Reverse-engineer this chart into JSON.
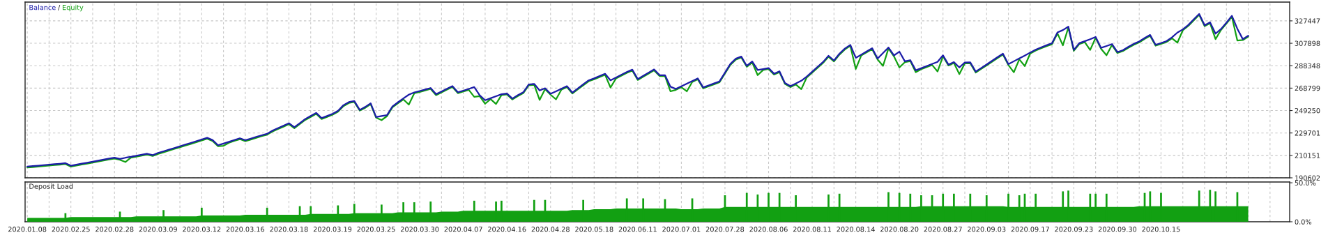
{
  "chart_data": [
    {
      "type": "line",
      "legend": "top left",
      "annotations": [
        "/"
      ],
      "grid": true,
      "tick_labels": "y",
      "categories": [
        "2020.01.08",
        null,
        null,
        null,
        null,
        null,
        null,
        null,
        "2020.02.25",
        null,
        null,
        null,
        null,
        null,
        null,
        null,
        "2020.02.28",
        null,
        null,
        null,
        null,
        null,
        null,
        null,
        "2020.03.09",
        null,
        null,
        null,
        null,
        null,
        null,
        null,
        "2020.03.12",
        null,
        null,
        null,
        null,
        null,
        null,
        null,
        "2020.03.16",
        null,
        null,
        null,
        null,
        null,
        null,
        null,
        "2020.03.18",
        null,
        null,
        null,
        null,
        null,
        null,
        null,
        "2020.03.19",
        null,
        null,
        null,
        null,
        null,
        null,
        null,
        "2020.03.25",
        null,
        null,
        null,
        null,
        null,
        null,
        null,
        "2020.03.30",
        null,
        null,
        null,
        null,
        null,
        null,
        null,
        "2020.04.07",
        null,
        null,
        null,
        null,
        null,
        null,
        null,
        "2020.04.16",
        null,
        null,
        null,
        null,
        null,
        null,
        null,
        "2020.04.28",
        null,
        null,
        null,
        null,
        null,
        null,
        null,
        "2020.05.18",
        null,
        null,
        null,
        null,
        null,
        null,
        null,
        "2020.06.11",
        null,
        null,
        null,
        null,
        null,
        null,
        null,
        "2020.07.01",
        null,
        null,
        null,
        null,
        null,
        null,
        null,
        "2020.07.28",
        null,
        null,
        null,
        null,
        null,
        null,
        null,
        "2020.08.06",
        null,
        null,
        null,
        null,
        null,
        null,
        null,
        "2020.08.11",
        null,
        null,
        null,
        null,
        null,
        null,
        null,
        "2020.08.14",
        null,
        null,
        null,
        null,
        null,
        null,
        null,
        "2020.08.20",
        null,
        null,
        null,
        null,
        null,
        null,
        null,
        "2020.08.27",
        null,
        null,
        null,
        null,
        null,
        null,
        null,
        "2020.09.03",
        null,
        null,
        null,
        null,
        null,
        null,
        null,
        "2020.09.17",
        null,
        null,
        null,
        null,
        null,
        null,
        null,
        "2020.09.23",
        null,
        null,
        null,
        null,
        null,
        null,
        null,
        "2020.09.30",
        null,
        null,
        null,
        null,
        null,
        null,
        null,
        "2020.10.15",
        null,
        null,
        null,
        null,
        null,
        null,
        null,
        null,
        null,
        null,
        null,
        null,
        null,
        null,
        null,
        null,
        null,
        null,
        null,
        null,
        null,
        null,
        null
      ],
      "series": [
        {
          "name": "Balance",
          "color": "#1c1ca8",
          "values": [
            200400,
            200800,
            201200,
            201700,
            202100,
            202500,
            202900,
            203400,
            201200,
            202100,
            203000,
            203800,
            204700,
            205600,
            206500,
            207400,
            208200,
            207100,
            208100,
            208900,
            209800,
            210700,
            211600,
            210400,
            212300,
            213700,
            215200,
            216600,
            218100,
            219600,
            221000,
            222500,
            224000,
            225500,
            223500,
            219000,
            220500,
            222000,
            223600,
            225100,
            223400,
            224800,
            226300,
            227700,
            229000,
            231800,
            233900,
            236000,
            238200,
            234700,
            238300,
            241900,
            244500,
            247200,
            242700,
            244500,
            246400,
            249000,
            253900,
            256600,
            257500,
            249800,
            252400,
            255600,
            243600,
            244500,
            245200,
            252900,
            256400,
            259800,
            263100,
            265100,
            266300,
            267600,
            268900,
            263500,
            265900,
            268300,
            270600,
            265200,
            266600,
            268100,
            269700,
            262600,
            258200,
            260000,
            261700,
            263500,
            264100,
            259700,
            262700,
            265200,
            272000,
            272500,
            266700,
            268700,
            263900,
            266000,
            268300,
            270500,
            264900,
            268500,
            272100,
            275600,
            277300,
            279300,
            281300,
            275600,
            278000,
            280500,
            282900,
            284900,
            276700,
            279500,
            282300,
            285100,
            280100,
            280100,
            270000,
            268100,
            270400,
            272700,
            275000,
            277300,
            269400,
            271200,
            272900,
            274700,
            282300,
            289900,
            294500,
            296300,
            288200,
            292000,
            284600,
            285400,
            286300,
            281400,
            283500,
            273300,
            270500,
            272800,
            275200,
            278900,
            283100,
            287400,
            291600,
            297000,
            292900,
            298800,
            303300,
            306500,
            295200,
            298000,
            300800,
            303600,
            294600,
            299400,
            304200,
            297300,
            300600,
            292200,
            293200,
            284300,
            286100,
            288000,
            289800,
            291700,
            297400,
            289300,
            291500,
            286800,
            291100,
            291300,
            283200,
            286300,
            289400,
            292600,
            295800,
            298800,
            289700,
            292200,
            294700,
            297200,
            299800,
            302300,
            304300,
            306200,
            307900,
            317300,
            319400,
            322400,
            302100,
            308000,
            309700,
            311400,
            313400,
            303900,
            305500,
            307200,
            300200,
            301900,
            304700,
            307400,
            309500,
            312500,
            315200,
            306600,
            308100,
            309800,
            313000,
            317200,
            320000,
            323800,
            328700,
            333500,
            323600,
            326200,
            316300,
            320300,
            325900,
            331900,
            320600,
            311500,
            314500,
            null,
            null,
            null,
            null,
            null,
            null,
            null
          ]
        },
        {
          "name": "Equity",
          "color": "#12a012",
          "values": [
            199600,
            200000,
            200400,
            200900,
            201300,
            201700,
            202100,
            202600,
            200400,
            201300,
            202200,
            203000,
            203900,
            204800,
            205700,
            206600,
            207400,
            206300,
            204400,
            208100,
            209000,
            209900,
            210800,
            209600,
            211500,
            212900,
            214400,
            215800,
            217300,
            218800,
            220200,
            221700,
            223200,
            224700,
            222700,
            218200,
            218500,
            221200,
            222800,
            224300,
            222600,
            224000,
            225500,
            226900,
            228200,
            231000,
            233100,
            235200,
            237400,
            233900,
            237500,
            241100,
            243700,
            246400,
            241900,
            243700,
            245600,
            248200,
            253100,
            255800,
            256700,
            249200,
            251600,
            254800,
            243000,
            240900,
            244400,
            252100,
            255600,
            259000,
            254400,
            264300,
            265500,
            266800,
            268100,
            262700,
            265100,
            267500,
            269800,
            264400,
            265800,
            267300,
            261200,
            261800,
            255200,
            259200,
            255000,
            262700,
            263300,
            258900,
            261900,
            264400,
            271200,
            271700,
            258500,
            267900,
            263100,
            259000,
            267500,
            269700,
            264100,
            267700,
            271300,
            274800,
            276500,
            278500,
            280500,
            269300,
            277200,
            279700,
            282100,
            284100,
            275900,
            278700,
            281500,
            284300,
            279300,
            279300,
            266000,
            267300,
            269600,
            266000,
            274200,
            276500,
            268600,
            270400,
            272100,
            273900,
            281500,
            289100,
            293700,
            295500,
            287400,
            291200,
            280100,
            284600,
            285500,
            280600,
            282700,
            272500,
            269700,
            272000,
            267900,
            278100,
            282300,
            286600,
            290800,
            296200,
            292100,
            298000,
            302500,
            305700,
            285500,
            297200,
            300000,
            302800,
            293800,
            288200,
            303400,
            296500,
            286800,
            291400,
            292400,
            282700,
            285300,
            287200,
            289000,
            283300,
            296600,
            288500,
            290700,
            281000,
            290300,
            290500,
            282400,
            285500,
            288600,
            291800,
            295000,
            298000,
            288900,
            282600,
            293900,
            288000,
            299000,
            301500,
            303500,
            305400,
            307100,
            316500,
            306100,
            321600,
            301300,
            307200,
            308900,
            302100,
            312600,
            303100,
            297400,
            306400,
            299400,
            301100,
            303900,
            306600,
            308700,
            311700,
            314400,
            305800,
            307300,
            309000,
            312200,
            308400,
            319200,
            323000,
            327900,
            332700,
            322800,
            325400,
            311500,
            319500,
            325100,
            331100,
            310300,
            310700,
            313700,
            null,
            null,
            null,
            null,
            null,
            null,
            null
          ]
        }
      ],
      "ylim": [
        190602,
        343800
      ],
      "yticks": [
        190602,
        210151,
        229701,
        249250,
        268799,
        288348,
        307898,
        327447
      ]
    },
    {
      "type": "area",
      "title": "Deposit Load",
      "grid": "x",
      "categories": [
        "2020.01.08",
        null,
        null,
        null,
        null,
        null,
        null,
        null,
        "2020.02.25",
        null,
        null,
        null,
        null,
        null,
        null,
        null,
        "2020.02.28",
        null,
        null,
        null,
        null,
        null,
        null,
        null,
        "2020.03.09",
        null,
        null,
        null,
        null,
        null,
        null,
        null,
        "2020.03.12",
        null,
        null,
        null,
        null,
        null,
        null,
        null,
        "2020.03.16",
        null,
        null,
        null,
        null,
        null,
        null,
        null,
        "2020.03.18",
        null,
        null,
        null,
        null,
        null,
        null,
        null,
        "2020.03.19",
        null,
        null,
        null,
        null,
        null,
        null,
        null,
        "2020.03.25",
        null,
        null,
        null,
        null,
        null,
        null,
        null,
        "2020.03.30",
        null,
        null,
        null,
        null,
        null,
        null,
        null,
        "2020.04.07",
        null,
        null,
        null,
        null,
        null,
        null,
        null,
        "2020.04.16",
        null,
        null,
        null,
        null,
        null,
        null,
        null,
        "2020.04.28",
        null,
        null,
        null,
        null,
        null,
        null,
        null,
        "2020.05.18",
        null,
        null,
        null,
        null,
        null,
        null,
        null,
        "2020.06.11",
        null,
        null,
        null,
        null,
        null,
        null,
        null,
        "2020.07.01",
        null,
        null,
        null,
        null,
        null,
        null,
        null,
        "2020.07.28",
        null,
        null,
        null,
        null,
        null,
        null,
        null,
        "2020.08.06",
        null,
        null,
        null,
        null,
        null,
        null,
        null,
        "2020.08.11",
        null,
        null,
        null,
        null,
        null,
        null,
        null,
        "2020.08.14",
        null,
        null,
        null,
        null,
        null,
        null,
        null,
        "2020.08.20",
        null,
        null,
        null,
        null,
        null,
        null,
        null,
        "2020.08.27",
        null,
        null,
        null,
        null,
        null,
        null,
        null,
        "2020.09.03",
        null,
        null,
        null,
        null,
        null,
        null,
        null,
        "2020.09.17",
        null,
        null,
        null,
        null,
        null,
        null,
        null,
        "2020.09.23",
        null,
        null,
        null,
        null,
        null,
        null,
        null,
        "2020.09.30",
        null,
        null,
        null,
        null,
        null,
        null,
        null,
        "2020.10.15",
        null,
        null,
        null,
        null,
        null,
        null,
        null,
        null,
        null,
        null,
        null,
        null,
        null,
        null,
        null,
        null,
        null,
        null,
        null,
        null,
        null,
        null,
        null
      ],
      "series": [
        {
          "type": "area",
          "color": "#12a012",
          "values": [
            5,
            5,
            5,
            5,
            5,
            5,
            5,
            5,
            6,
            6,
            6,
            6,
            6,
            6,
            6,
            6,
            6,
            6,
            6,
            6,
            7,
            7,
            7,
            7,
            7,
            7,
            7,
            7,
            7,
            7,
            7,
            7,
            8,
            8,
            8,
            8,
            8,
            8,
            8,
            8,
            9,
            9,
            9,
            9,
            9,
            9,
            9,
            9,
            9,
            9,
            9,
            9,
            10,
            10,
            10,
            10,
            10,
            10,
            10,
            10,
            11,
            11,
            11,
            11,
            11,
            11,
            11,
            11,
            12,
            12,
            12,
            12,
            12,
            12,
            12,
            12,
            13,
            13,
            13,
            13,
            14,
            14,
            14,
            14,
            14,
            14,
            14,
            14,
            14,
            14,
            14,
            14,
            14,
            14,
            14,
            14,
            14,
            14,
            14,
            14,
            15,
            15,
            15,
            15,
            16,
            16,
            16,
            16,
            17,
            17,
            17,
            17,
            17,
            17,
            17,
            17,
            17,
            17,
            17,
            17,
            16,
            16,
            16,
            16,
            17,
            17,
            17,
            17,
            19,
            19,
            19,
            19,
            19,
            19,
            19,
            19,
            19,
            19,
            19,
            19,
            19,
            19,
            19,
            19,
            19,
            19,
            19,
            19,
            19,
            19,
            19,
            19,
            19,
            19,
            19,
            19,
            19,
            19,
            19,
            19,
            19,
            19,
            19,
            19,
            20,
            20,
            20,
            20,
            20,
            20,
            20,
            20,
            20,
            20,
            20,
            20,
            20,
            20,
            20,
            20,
            19,
            19,
            19,
            19,
            19,
            19,
            19,
            19,
            19,
            19,
            19,
            19,
            19,
            19,
            19,
            19,
            19,
            19,
            19,
            19,
            19,
            19,
            19,
            19,
            20,
            20,
            20,
            20,
            20,
            20,
            20,
            20,
            20,
            20,
            20,
            20,
            20,
            20,
            20,
            20,
            20,
            20,
            20,
            20,
            20,
            null,
            null,
            null,
            null,
            null,
            null,
            null
          ]
        },
        {
          "type": "bar",
          "color": "#12a012",
          "values": [
            null,
            null,
            null,
            null,
            null,
            null,
            null,
            11,
            null,
            null,
            null,
            null,
            null,
            null,
            null,
            null,
            null,
            13,
            null,
            null,
            null,
            null,
            null,
            null,
            null,
            15,
            null,
            null,
            null,
            null,
            null,
            null,
            18,
            null,
            null,
            null,
            null,
            null,
            null,
            null,
            null,
            null,
            null,
            null,
            18,
            null,
            null,
            null,
            null,
            null,
            20,
            null,
            20,
            null,
            null,
            null,
            null,
            21,
            null,
            null,
            23,
            null,
            null,
            null,
            null,
            22,
            null,
            null,
            null,
            25,
            null,
            25,
            null,
            null,
            26,
            null,
            null,
            null,
            null,
            null,
            null,
            null,
            27,
            null,
            null,
            null,
            26,
            27,
            null,
            null,
            null,
            null,
            null,
            28,
            null,
            28,
            null,
            null,
            null,
            null,
            null,
            null,
            28,
            null,
            null,
            null,
            null,
            null,
            null,
            null,
            30,
            null,
            null,
            30,
            null,
            null,
            null,
            29,
            null,
            null,
            null,
            null,
            30,
            null,
            null,
            null,
            null,
            null,
            34,
            null,
            null,
            null,
            37,
            null,
            35,
            null,
            37,
            null,
            37,
            null,
            null,
            34,
            null,
            null,
            null,
            null,
            null,
            35,
            null,
            36,
            null,
            null,
            null,
            null,
            null,
            null,
            null,
            null,
            38,
            null,
            37,
            null,
            36,
            null,
            34,
            null,
            34,
            null,
            36,
            null,
            36,
            null,
            null,
            36,
            null,
            null,
            34,
            null,
            null,
            null,
            36,
            null,
            34,
            36,
            null,
            36,
            null,
            null,
            null,
            null,
            39,
            40,
            null,
            null,
            null,
            36,
            36,
            null,
            36,
            null,
            null,
            null,
            null,
            null,
            null,
            37,
            39,
            null,
            37,
            null,
            null,
            null,
            null,
            null,
            null,
            40,
            null,
            41,
            39,
            null,
            null,
            null,
            38,
            null,
            null,
            null,
            null,
            null,
            null,
            null,
            null,
            null
          ]
        }
      ],
      "ylim": [
        0,
        51
      ],
      "yticks": [
        {
          "value": 0,
          "label": "0.0%"
        },
        {
          "value": 50,
          "label": "50.0%"
        }
      ]
    }
  ]
}
